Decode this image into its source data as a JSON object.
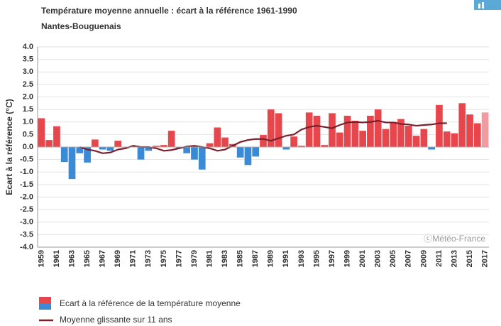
{
  "chart_data": {
    "type": "bar",
    "title": "Température moyenne annuelle : écart à la référence 1961-1990",
    "subtitle": "Nantes-Bouguenais",
    "y_label": "Ecart à la référence (°C)",
    "credit": "ⓒMétéo-France",
    "categories": [
      "1959",
      null,
      "1961",
      null,
      "1963",
      null,
      "1965",
      null,
      "1967",
      null,
      "1969",
      null,
      "1971",
      null,
      "1973",
      null,
      "1975",
      null,
      "1977",
      null,
      "1979",
      null,
      "1981",
      null,
      "1983",
      null,
      "1985",
      null,
      "1987",
      null,
      "1989",
      null,
      "1991",
      null,
      "1993",
      null,
      "1995",
      null,
      "1997",
      null,
      "1999",
      null,
      "2001",
      null,
      "2003",
      null,
      "2005",
      null,
      "2007",
      null,
      "2009",
      null,
      "2011",
      null,
      "2013",
      null,
      "2015",
      null,
      "2017"
    ],
    "series": [
      {
        "name": "Ecart à la référence de la température moyenne",
        "color": "#e8464d",
        "negative_color": "#3a8ad6",
        "last_color": "#f29aa0",
        "values": [
          1.15,
          0.28,
          0.83,
          -0.6,
          -1.28,
          -0.25,
          -0.62,
          0.3,
          -0.1,
          -0.15,
          0.25,
          -0.02,
          0.05,
          -0.5,
          -0.15,
          0.05,
          0.08,
          0.65,
          -0.05,
          -0.25,
          -0.5,
          -0.9,
          0.15,
          0.78,
          0.38,
          0.12,
          -0.42,
          -0.72,
          -0.38,
          0.48,
          1.5,
          1.35,
          -0.1,
          0.42,
          0.05,
          1.38,
          1.25,
          0.08,
          1.35,
          0.58,
          1.25,
          1.05,
          0.65,
          1.25,
          1.5,
          0.72,
          1.0,
          1.12,
          0.85,
          0.45,
          0.72,
          -0.1,
          1.68,
          0.62,
          0.55,
          1.75,
          1.3,
          0.95,
          1.38
        ]
      },
      {
        "name": "Moyenne glissante sur 11 ans",
        "type": "line",
        "color": "#7a1f2b",
        "values": [
          null,
          null,
          null,
          null,
          null,
          0.0,
          -0.1,
          -0.15,
          -0.25,
          -0.22,
          -0.1,
          -0.05,
          0.05,
          0.0,
          0.0,
          -0.05,
          -0.15,
          -0.12,
          -0.05,
          0.02,
          0.05,
          0.0,
          -0.05,
          -0.15,
          -0.1,
          0.05,
          0.2,
          0.28,
          0.32,
          0.32,
          0.25,
          0.35,
          0.45,
          0.5,
          0.7,
          0.8,
          0.85,
          0.8,
          0.75,
          0.88,
          0.98,
          1.0,
          0.98,
          1.0,
          1.05,
          0.98,
          0.98,
          0.92,
          0.9,
          0.85,
          0.88,
          0.9,
          0.95,
          0.95,
          null,
          null,
          null,
          null,
          null
        ]
      }
    ],
    "ylim": [
      -4,
      4
    ],
    "yticks": [
      {
        "value": 4,
        "label": "4.0"
      },
      {
        "value": 3.5,
        "label": "3.5"
      },
      {
        "value": 3,
        "label": "3.0"
      },
      {
        "value": 2.5,
        "label": "2.5"
      },
      {
        "value": 2,
        "label": "2.0"
      },
      {
        "value": 1.5,
        "label": "1.5"
      },
      {
        "value": 1,
        "label": "1.0"
      },
      {
        "value": 0.5,
        "label": "0.5"
      },
      {
        "value": 0,
        "label": "0.0"
      },
      {
        "value": -0.5,
        "label": "-0.5"
      },
      {
        "value": -1,
        "label": "-1.0"
      },
      {
        "value": -1.5,
        "label": "-1.5"
      },
      {
        "value": -2,
        "label": "-2.0"
      },
      {
        "value": -2.5,
        "label": "-2.5"
      },
      {
        "value": -3,
        "label": "-3.0"
      },
      {
        "value": -3.5,
        "label": "-3.5"
      },
      {
        "value": -4,
        "label": "-4.0"
      }
    ],
    "grid": true
  }
}
